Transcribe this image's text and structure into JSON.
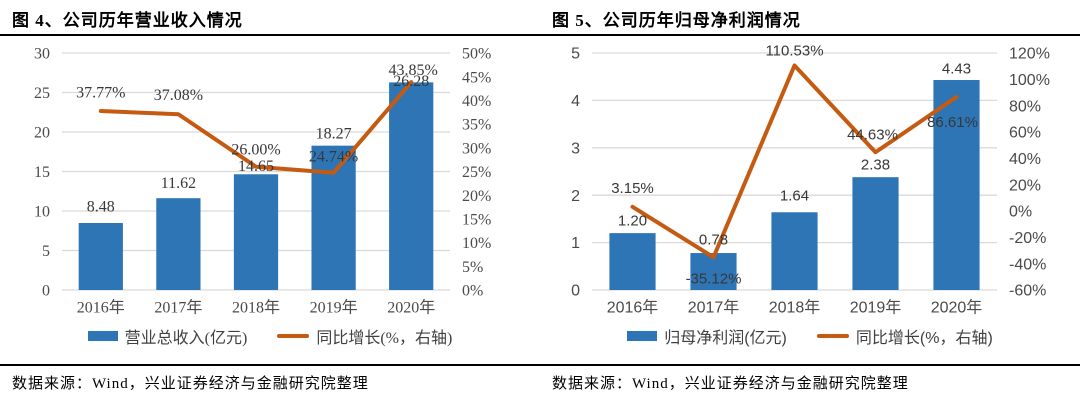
{
  "colors": {
    "bar": "#2E75B6",
    "line": "#C55A11",
    "grid": "#D9D9D9",
    "tick_text": "#4a4a4a",
    "label_text": "#383838",
    "title_text": "#000000"
  },
  "panels": [
    {
      "title": "图 4、公司历年营业收入情况",
      "source": "数据来源：Wind，兴业证券经济与金融研究院整理",
      "legend": [
        {
          "label": "营业总收入(亿元)",
          "type": "bar"
        },
        {
          "label": "同比增长(%，右轴)",
          "type": "line"
        }
      ]
    },
    {
      "title": "图 5、公司历年归母净利润情况",
      "source": "数据来源：Wind，兴业证券经济与金融研究院整理",
      "legend": [
        {
          "label": "归母净利润(亿元)",
          "type": "bar"
        },
        {
          "label": "同比增长(%，右轴)",
          "type": "line"
        }
      ]
    }
  ],
  "chart_data": [
    {
      "type": "bar",
      "title": "图 4、公司历年营业收入情况",
      "categories": [
        "2016年",
        "2017年",
        "2018年",
        "2019年",
        "2020年"
      ],
      "series": [
        {
          "name": "营业总收入(亿元)",
          "type": "bar",
          "axis": "left",
          "values": [
            8.48,
            11.62,
            14.65,
            18.27,
            26.28
          ],
          "labels": [
            "8.48",
            "11.62",
            "14.65",
            "18.27",
            "26.28"
          ]
        },
        {
          "name": "同比增长(%，右轴)",
          "type": "line",
          "axis": "right",
          "values": [
            37.77,
            37.08,
            26.0,
            24.74,
            43.85
          ],
          "labels": [
            "37.77%",
            "37.08%",
            "26.00%",
            "24.74%",
            "43.85%"
          ]
        }
      ],
      "left_axis": {
        "min": 0,
        "max": 30,
        "step": 5,
        "ticks": [
          "0",
          "5",
          "10",
          "15",
          "20",
          "25",
          "30"
        ]
      },
      "right_axis": {
        "min": 0,
        "max": 50,
        "step": 5,
        "ticks": [
          "0%",
          "5%",
          "10%",
          "15%",
          "20%",
          "25%",
          "30%",
          "35%",
          "40%",
          "45%",
          "50%"
        ]
      },
      "grid": "horizontal",
      "legend_position": "bottom"
    },
    {
      "type": "bar",
      "title": "图 5、公司历年归母净利润情况",
      "categories": [
        "2016年",
        "2017年",
        "2018年",
        "2019年",
        "2020年"
      ],
      "series": [
        {
          "name": "归母净利润(亿元)",
          "type": "bar",
          "axis": "left",
          "values": [
            1.2,
            0.78,
            1.64,
            2.38,
            4.43
          ],
          "labels": [
            "1.20",
            "0.78",
            "1.64",
            "2.38",
            "4.43"
          ]
        },
        {
          "name": "同比增长(%，右轴)",
          "type": "line",
          "axis": "right",
          "values": [
            3.15,
            -35.12,
            110.53,
            44.63,
            86.61
          ],
          "labels": [
            "3.15%",
            "-35.12%",
            "110.53%",
            "44.63%",
            "86.61%"
          ]
        }
      ],
      "left_axis": {
        "min": 0,
        "max": 5,
        "step": 1,
        "ticks": [
          "0",
          "1",
          "2",
          "3",
          "4",
          "5"
        ]
      },
      "right_axis": {
        "min": -60,
        "max": 120,
        "step": 20,
        "ticks": [
          "-60%",
          "-40%",
          "-20%",
          "0%",
          "20%",
          "40%",
          "60%",
          "80%",
          "100%",
          "120%"
        ]
      },
      "grid": "horizontal",
      "legend_position": "bottom"
    }
  ]
}
